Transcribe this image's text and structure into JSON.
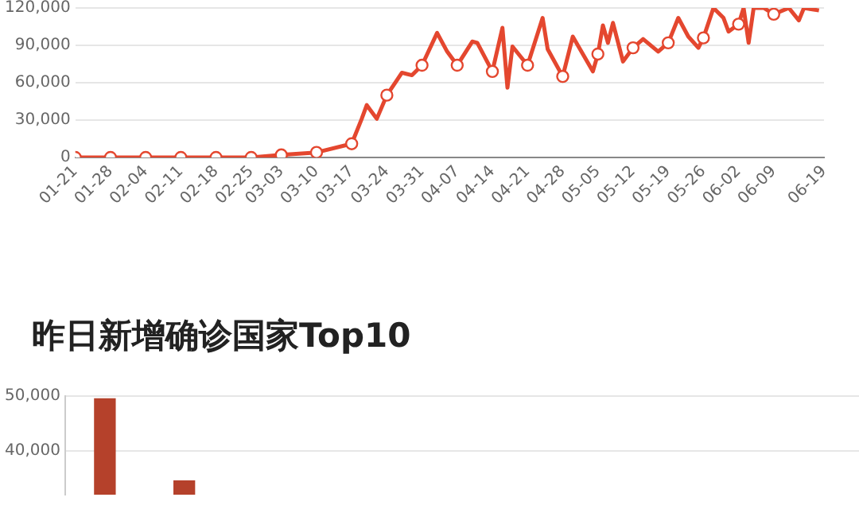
{
  "chart_data": [
    {
      "type": "line",
      "x": [
        "--01-21",
        "--01-28",
        "--02-04",
        "--02-11",
        "--02-18",
        "--02-25",
        "--03-03",
        "--03-10",
        "--03-17",
        "--03-19",
        "--03-20",
        "--03-22",
        "--03-24",
        "--03-26",
        "--03-27",
        "--03-29",
        "--03-31",
        "--04-03",
        "--04-05",
        "--04-07",
        "--04-10",
        "--04-11",
        "--04-14",
        "--04-16",
        "--04-17",
        "--04-18",
        "--04-21",
        "--04-24",
        "--04-25",
        "--04-28",
        "--04-30",
        "--05-04",
        "--05-05",
        "--05-06",
        "--05-07",
        "--05-08",
        "--05-10",
        "--05-12",
        "--05-14",
        "--05-17",
        "--05-19",
        "--05-21",
        "--05-23",
        "--05-25",
        "--05-26",
        "--05-28",
        "--05-30",
        "--05-31",
        "--06-02",
        "--06-03",
        "--06-04",
        "--06-05",
        "--06-07",
        "--06-09",
        "--06-12",
        "--06-14",
        "--06-15",
        "--06-18"
      ],
      "series": [
        {
          "type": "line",
          "color": "#e4472f",
          "marker": "none",
          "values": [
            0,
            0,
            0,
            0,
            0,
            0,
            2000,
            4000,
            11000,
            31000,
            42000,
            31000,
            50000,
            62000,
            68000,
            66000,
            74000,
            100000,
            85000,
            74000,
            93000,
            92000,
            69000,
            104000,
            56000,
            89000,
            74000,
            112000,
            87000,
            65000,
            97000,
            69000,
            83000,
            106000,
            92000,
            108000,
            77000,
            88000,
            95000,
            85000,
            92000,
            112000,
            97000,
            88000,
            96000,
            120000,
            112000,
            101000,
            107000,
            120000,
            92000,
            120000,
            120000,
            115000,
            120000,
            110000,
            120000,
            118000
          ]
        },
        {
          "type": "scatter",
          "color": "#e4472f",
          "marker": "circle",
          "x": [
            "--01-21",
            "--01-28",
            "--02-04",
            "--02-11",
            "--02-18",
            "--02-25",
            "--03-03",
            "--03-10",
            "--03-17",
            "--03-24",
            "--03-31",
            "--04-07",
            "--04-14",
            "--04-21",
            "--04-28",
            "--05-05",
            "--05-12",
            "--05-19",
            "--05-26",
            "--06-02",
            "--06-09"
          ],
          "values": [
            0,
            0,
            0,
            0,
            0,
            0,
            2000,
            4000,
            11000,
            50000,
            74000,
            74000,
            69000,
            74000,
            65000,
            83000,
            88000,
            92000,
            96000,
            107000,
            115000
          ]
        }
      ],
      "xlim": [
        "--01-21",
        "--06-19"
      ],
      "xticks": [
        {
          "value": "--01-21",
          "label": "01-21"
        },
        {
          "value": "--01-28",
          "label": "01-28"
        },
        {
          "value": "--02-04",
          "label": "02-04"
        },
        {
          "value": "--02-11",
          "label": "02-11"
        },
        {
          "value": "--02-18",
          "label": "02-18"
        },
        {
          "value": "--02-25",
          "label": "02-25"
        },
        {
          "value": "--03-03",
          "label": "03-03"
        },
        {
          "value": "--03-10",
          "label": "03-10"
        },
        {
          "value": "--03-17",
          "label": "03-17"
        },
        {
          "value": "--03-24",
          "label": "03-24"
        },
        {
          "value": "--03-31",
          "label": "03-31"
        },
        {
          "value": "--04-07",
          "label": "04-07"
        },
        {
          "value": "--04-14",
          "label": "04-14"
        },
        {
          "value": "--04-21",
          "label": "04-21"
        },
        {
          "value": "--04-28",
          "label": "04-28"
        },
        {
          "value": "--05-05",
          "label": "05-05"
        },
        {
          "value": "--05-12",
          "label": "05-12"
        },
        {
          "value": "--05-19",
          "label": "05-19"
        },
        {
          "value": "--05-26",
          "label": "05-26"
        },
        {
          "value": "--06-02",
          "label": "06-02"
        },
        {
          "value": "--06-09",
          "label": "06-09"
        },
        {
          "value": "--06-19",
          "label": "06-19"
        }
      ],
      "ylim": [
        0,
        120000
      ],
      "yticks": [
        0,
        {
          "value": 30000,
          "label": "30,000"
        },
        {
          "value": 60000,
          "label": "60,000"
        },
        {
          "value": 90000,
          "label": "90,000"
        },
        {
          "value": 120000,
          "label": "120,000"
        }
      ],
      "grid": "y",
      "legend": false
    },
    {
      "type": "bar",
      "title": "昨日新增确诊国家Top10",
      "categories": [
        null,
        null,
        null,
        null,
        null,
        null,
        null,
        null,
        null,
        null
      ],
      "series": [
        {
          "color": "#b5412b",
          "values": [
            49500,
            34500,
            null,
            null,
            null,
            null,
            null,
            null,
            null,
            null
          ]
        }
      ],
      "ylim": [
        32000,
        50000
      ],
      "yticks": [
        {
          "value": 40000,
          "label": "40,000"
        },
        {
          "value": 50000,
          "label": "50,000"
        }
      ],
      "grid": "y",
      "tick_labels": "y",
      "legend": false
    }
  ]
}
